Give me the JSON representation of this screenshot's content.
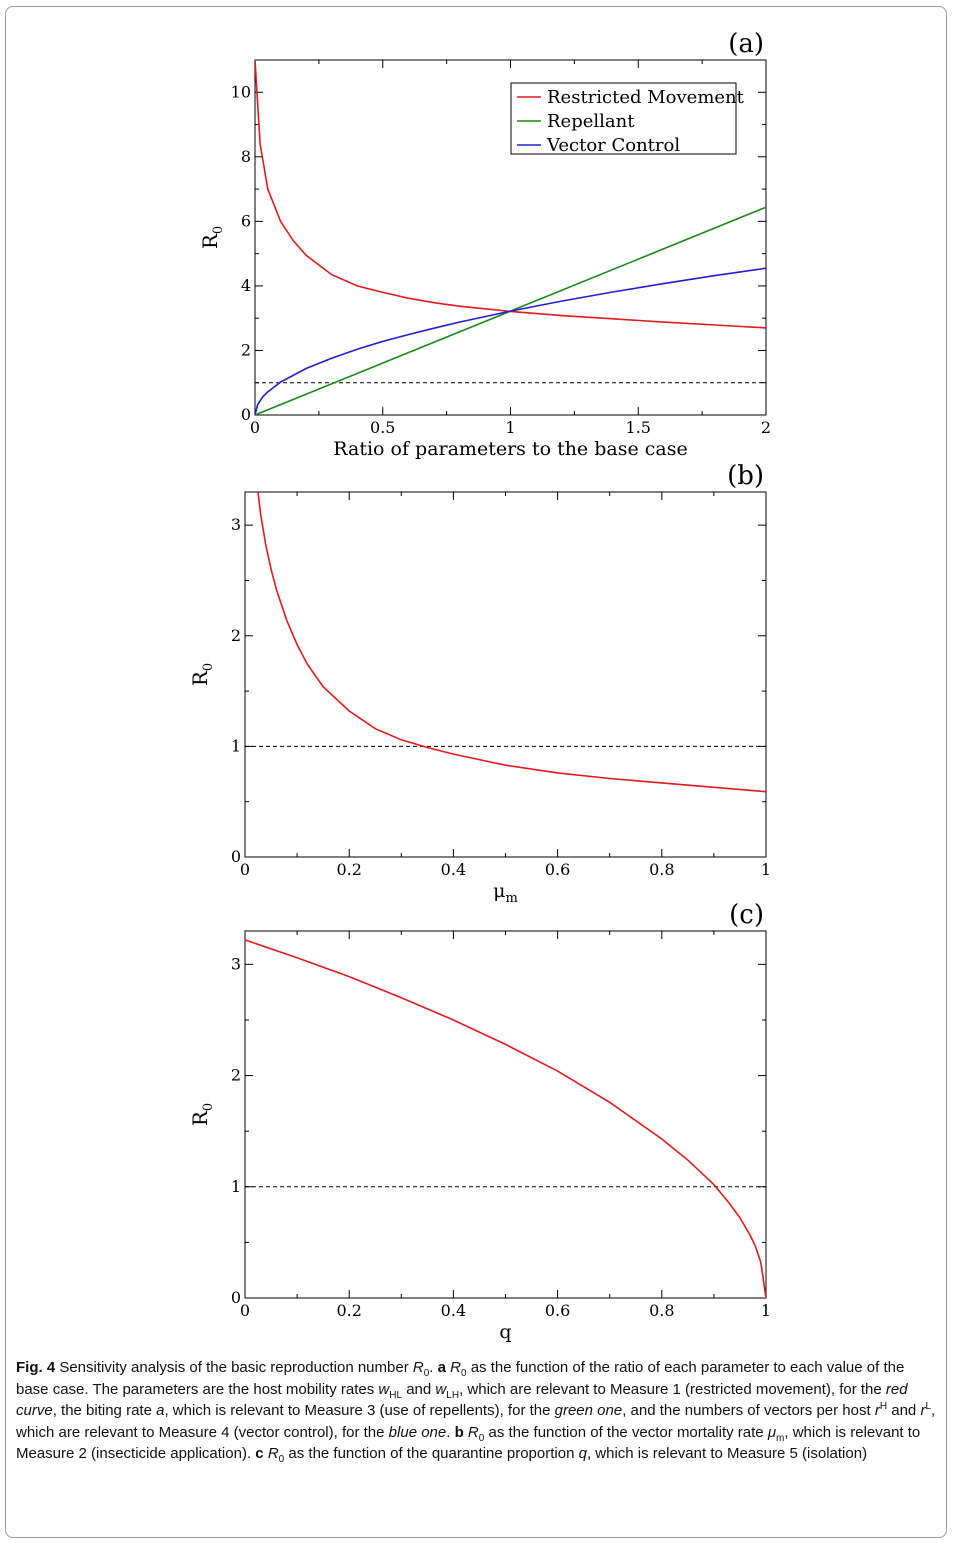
{
  "chart_data": [
    {
      "type": "line",
      "panel_label": "(a)",
      "xlabel": "Ratio of parameters to the base case",
      "ylabel": "R",
      "ylabel_sub": "0",
      "xlim": [
        0,
        2
      ],
      "ylim": [
        0,
        11
      ],
      "xticks": [
        0,
        0.5,
        1,
        1.5,
        2
      ],
      "xtick_labels": [
        "0",
        "0.5",
        "1",
        "1.5",
        "2"
      ],
      "yticks": [
        0,
        2,
        4,
        6,
        8,
        10
      ],
      "ytick_labels": [
        "0",
        "2",
        "4",
        "6",
        "8",
        "10"
      ],
      "grid": false,
      "legend": "top-right",
      "threshold_line": 1,
      "series": [
        {
          "name": "Restricted Movement",
          "color": "#e41a1c",
          "x": [
            0.0,
            0.02,
            0.05,
            0.1,
            0.15,
            0.2,
            0.3,
            0.4,
            0.5,
            0.6,
            0.7,
            0.8,
            0.9,
            1.0,
            1.2,
            1.4,
            1.6,
            1.8,
            2.0
          ],
          "y": [
            11.0,
            8.4,
            7.0,
            6.0,
            5.4,
            4.95,
            4.35,
            4.0,
            3.8,
            3.62,
            3.48,
            3.37,
            3.29,
            3.21,
            3.08,
            2.98,
            2.88,
            2.79,
            2.7
          ]
        },
        {
          "name": "Repellant",
          "color": "#1a8a1a",
          "x": [
            0,
            2
          ],
          "y": [
            0,
            6.44
          ]
        },
        {
          "name": "Vector Control",
          "color": "#1f1fd6",
          "x": [
            0.0,
            0.01,
            0.03,
            0.05,
            0.1,
            0.2,
            0.3,
            0.4,
            0.5,
            0.6,
            0.7,
            0.8,
            0.9,
            1.0,
            1.2,
            1.4,
            1.6,
            1.8,
            2.0
          ],
          "y": [
            0.0,
            0.32,
            0.56,
            0.72,
            1.02,
            1.44,
            1.76,
            2.04,
            2.28,
            2.49,
            2.69,
            2.88,
            3.05,
            3.22,
            3.53,
            3.81,
            4.07,
            4.32,
            4.55
          ]
        }
      ]
    },
    {
      "type": "line",
      "panel_label": "(b)",
      "xlabel": "μ",
      "xlabel_sub": "m",
      "ylabel": "R",
      "ylabel_sub": "0",
      "xlim": [
        0,
        1
      ],
      "ylim": [
        0,
        3.3
      ],
      "xticks": [
        0,
        0.2,
        0.4,
        0.6,
        0.8,
        1
      ],
      "xtick_labels": [
        "0",
        "0.2",
        "0.4",
        "0.6",
        "0.8",
        "1"
      ],
      "yticks": [
        0,
        1,
        2,
        3
      ],
      "ytick_labels": [
        "0",
        "1",
        "2",
        "3"
      ],
      "grid": false,
      "threshold_line": 1,
      "series": [
        {
          "color": "#e41a1c",
          "x": [
            0.025,
            0.03,
            0.04,
            0.05,
            0.06,
            0.08,
            0.1,
            0.12,
            0.15,
            0.2,
            0.25,
            0.3,
            0.35,
            0.4,
            0.5,
            0.6,
            0.7,
            0.8,
            0.9,
            1.0
          ],
          "y": [
            3.3,
            3.1,
            2.82,
            2.6,
            2.42,
            2.14,
            1.92,
            1.74,
            1.54,
            1.32,
            1.16,
            1.06,
            0.99,
            0.93,
            0.83,
            0.76,
            0.71,
            0.67,
            0.63,
            0.59
          ]
        }
      ]
    },
    {
      "type": "line",
      "panel_label": "(c)",
      "xlabel": "q",
      "ylabel": "R",
      "ylabel_sub": "0",
      "xlim": [
        0,
        1
      ],
      "ylim": [
        0,
        3.3
      ],
      "xticks": [
        0,
        0.2,
        0.4,
        0.6,
        0.8,
        1
      ],
      "xtick_labels": [
        "0",
        "0.2",
        "0.4",
        "0.6",
        "0.8",
        "1"
      ],
      "yticks": [
        0,
        1,
        2,
        3
      ],
      "ytick_labels": [
        "0",
        "1",
        "2",
        "3"
      ],
      "grid": false,
      "threshold_line": 1,
      "series": [
        {
          "color": "#e41a1c",
          "x": [
            0.0,
            0.1,
            0.2,
            0.3,
            0.4,
            0.5,
            0.6,
            0.7,
            0.8,
            0.85,
            0.9,
            0.93,
            0.95,
            0.97,
            0.98,
            0.99,
            1.0
          ],
          "y": [
            3.22,
            3.06,
            2.89,
            2.7,
            2.5,
            2.28,
            2.04,
            1.76,
            1.43,
            1.24,
            1.02,
            0.85,
            0.72,
            0.56,
            0.46,
            0.32,
            0.0
          ]
        }
      ]
    }
  ],
  "caption": {
    "fig_label": "Fig. 4",
    "segments": [
      {
        "t": "  Sensitivity analysis of the basic reproduction number ",
        "s": "n"
      },
      {
        "t": "R",
        "s": "i"
      },
      {
        "t": "0",
        "s": "sub"
      },
      {
        "t": ". ",
        "s": "n"
      },
      {
        "t": "a",
        "s": "b"
      },
      {
        "t": " ",
        "s": "n"
      },
      {
        "t": "R",
        "s": "i"
      },
      {
        "t": "0",
        "s": "sub"
      },
      {
        "t": " as the function of the ratio of each parameter to each value of the base case. The parameters are the host mobility rates ",
        "s": "n"
      },
      {
        "t": "w",
        "s": "i"
      },
      {
        "t": "HL",
        "s": "sub"
      },
      {
        "t": " and ",
        "s": "n"
      },
      {
        "t": "w",
        "s": "i"
      },
      {
        "t": "LH",
        "s": "sub"
      },
      {
        "t": ", which are relevant to Measure 1 (restricted movement), for the ",
        "s": "n"
      },
      {
        "t": "red curve",
        "s": "i"
      },
      {
        "t": ", the biting rate ",
        "s": "n"
      },
      {
        "t": "a",
        "s": "i"
      },
      {
        "t": ", which is relevant to Measure 3 (use of repellents), for the ",
        "s": "n"
      },
      {
        "t": "green one",
        "s": "i"
      },
      {
        "t": ", and the numbers of vectors per host ",
        "s": "n"
      },
      {
        "t": "r",
        "s": "i"
      },
      {
        "t": "H",
        "s": "sup"
      },
      {
        "t": " and ",
        "s": "n"
      },
      {
        "t": "r",
        "s": "i"
      },
      {
        "t": "L",
        "s": "sup"
      },
      {
        "t": ", which are relevant to Measure 4 (vector control), for the ",
        "s": "n"
      },
      {
        "t": "blue one",
        "s": "i"
      },
      {
        "t": ". ",
        "s": "n"
      },
      {
        "t": "b",
        "s": "b"
      },
      {
        "t": " ",
        "s": "n"
      },
      {
        "t": "R",
        "s": "i"
      },
      {
        "t": "0",
        "s": "sub"
      },
      {
        "t": " as the function of the vector mortality rate ",
        "s": "n"
      },
      {
        "t": "μ",
        "s": "i"
      },
      {
        "t": "m",
        "s": "sub"
      },
      {
        "t": ", which is relevant to Measure 2 (insecticide application). ",
        "s": "n"
      },
      {
        "t": "c",
        "s": "b"
      },
      {
        "t": " ",
        "s": "n"
      },
      {
        "t": "R",
        "s": "i"
      },
      {
        "t": "0",
        "s": "sub"
      },
      {
        "t": " as the function of the quarantine proportion ",
        "s": "n"
      },
      {
        "t": "q",
        "s": "i"
      },
      {
        "t": ", which is relevant to Measure 5 (isolation)",
        "s": "n"
      }
    ]
  }
}
